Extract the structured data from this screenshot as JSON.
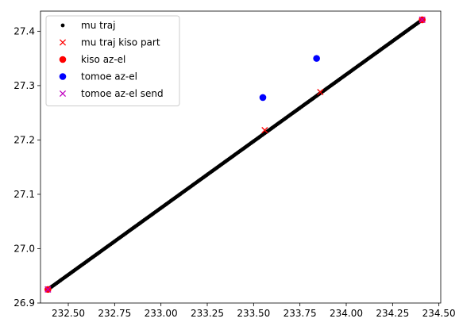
{
  "chart_data": {
    "type": "scatter",
    "title": "",
    "xlabel": "",
    "ylabel": "",
    "xlim": [
      232.35,
      234.51
    ],
    "ylim": [
      26.9,
      27.437
    ],
    "grid": false,
    "legend_position": "upper-left",
    "x_ticks": [
      232.5,
      232.75,
      233.0,
      233.25,
      233.5,
      233.75,
      234.0,
      234.25,
      234.5
    ],
    "x_tick_labels": [
      "232.50",
      "232.75",
      "233.00",
      "233.25",
      "233.50",
      "233.75",
      "234.00",
      "234.25",
      "234.50"
    ],
    "y_ticks": [
      26.9,
      27.0,
      27.1,
      27.2,
      27.3,
      27.4
    ],
    "y_tick_labels": [
      "26.9",
      "27.0",
      "27.1",
      "27.2",
      "27.3",
      "27.4"
    ],
    "series": [
      {
        "name": "mu traj",
        "marker": "dot",
        "color": "#000000",
        "line_start": [
          232.39,
          26.925
        ],
        "line_end": [
          234.41,
          27.421
        ],
        "num_points": 300
      },
      {
        "name": "mu traj kiso part",
        "marker": "x",
        "color": "#ff0000",
        "points": [
          [
            232.39,
            26.925
          ],
          [
            233.56,
            27.218
          ],
          [
            233.86,
            27.288
          ],
          [
            234.41,
            27.421
          ]
        ]
      },
      {
        "name": "kiso az-el",
        "marker": "circle",
        "color": "#ff0000",
        "points": [
          [
            232.39,
            26.925
          ],
          [
            234.41,
            27.421
          ]
        ]
      },
      {
        "name": "tomoe az-el",
        "marker": "circle",
        "color": "#0000ff",
        "points": [
          [
            233.55,
            27.278
          ],
          [
            233.84,
            27.35
          ]
        ]
      },
      {
        "name": "tomoe az-el send",
        "marker": "x",
        "color": "#bf00bf",
        "points": [
          [
            232.39,
            26.925
          ],
          [
            234.41,
            27.421
          ]
        ]
      }
    ]
  }
}
